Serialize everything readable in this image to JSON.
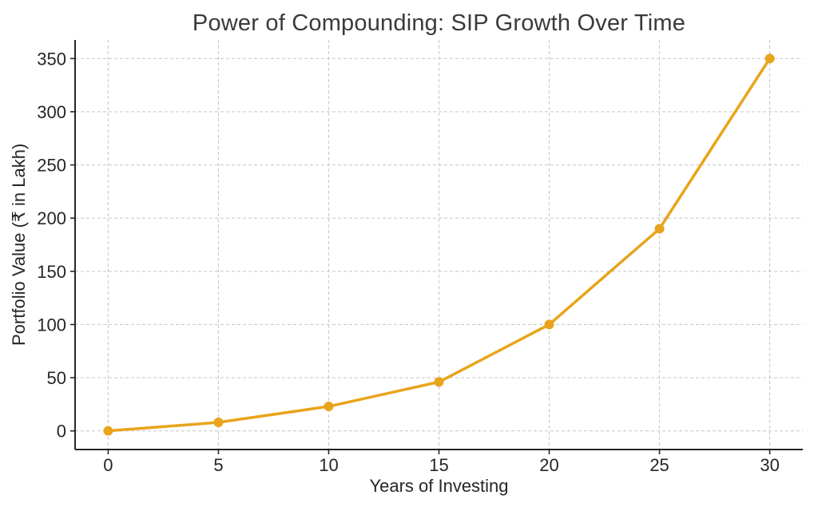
{
  "chart_data": {
    "type": "line",
    "title": "Power of Compounding: SIP Growth Over Time",
    "xlabel": "Years of Investing",
    "ylabel": "Portfolio Value (₹ in Lakh)",
    "x": [
      0,
      5,
      10,
      15,
      20,
      25,
      30
    ],
    "series": [
      {
        "name": "Portfolio Value",
        "values": [
          0,
          8,
          23,
          46,
          100,
          190,
          350
        ]
      }
    ],
    "xticks": [
      0,
      5,
      10,
      15,
      20,
      25,
      30
    ],
    "yticks": [
      0,
      50,
      100,
      150,
      200,
      250,
      300,
      350
    ],
    "xlim": [
      -1.5,
      31.5
    ],
    "ylim": [
      -17.5,
      367.5
    ],
    "grid": true,
    "grid_style": "dashed",
    "legend_position": "none",
    "marker": "circle",
    "colors": {
      "line": "#E8A41B",
      "marker": "#E8A41B",
      "grid": "#CCCCCC",
      "axis": "#262626",
      "tick_label": "#262626",
      "title": "#3A3A3A",
      "background": "#FFFFFF"
    }
  }
}
